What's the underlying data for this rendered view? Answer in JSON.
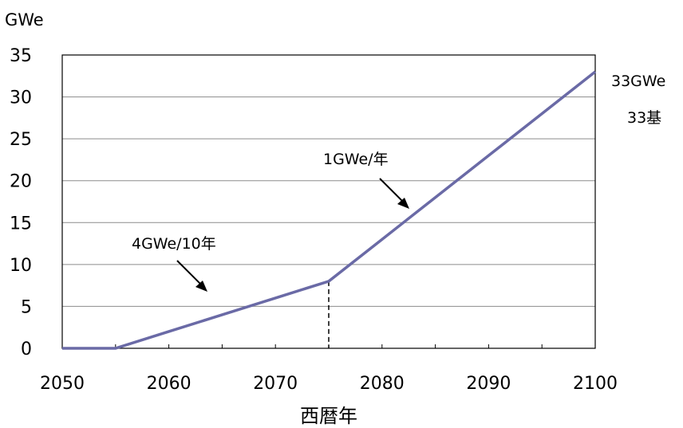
{
  "chart_data": {
    "type": "line",
    "ylabel": "GWe",
    "xlabel": "西暦年",
    "xlim": [
      2050,
      2100
    ],
    "ylim": [
      0,
      35
    ],
    "x_ticks": [
      "2050",
      "2060",
      "2070",
      "2080",
      "2090",
      "2100"
    ],
    "y_ticks": [
      "0",
      "5",
      "10",
      "15",
      "20",
      "25",
      "30",
      "35"
    ],
    "grid": "horizontal",
    "series": [
      {
        "color": "#6a6aa6",
        "x": [
          2050,
          2055,
          2060,
          2065,
          2070,
          2075,
          2080,
          2085,
          2090,
          2095,
          2100
        ],
        "y": [
          0,
          0,
          2,
          4,
          6,
          8,
          13,
          18,
          23,
          28,
          33
        ]
      }
    ],
    "annotations": {
      "rate_early": "4GWe/10年",
      "rate_late": "1GWe/年",
      "end_value": "33GWe",
      "end_count": "33基"
    },
    "marker_line_x": 2075
  }
}
